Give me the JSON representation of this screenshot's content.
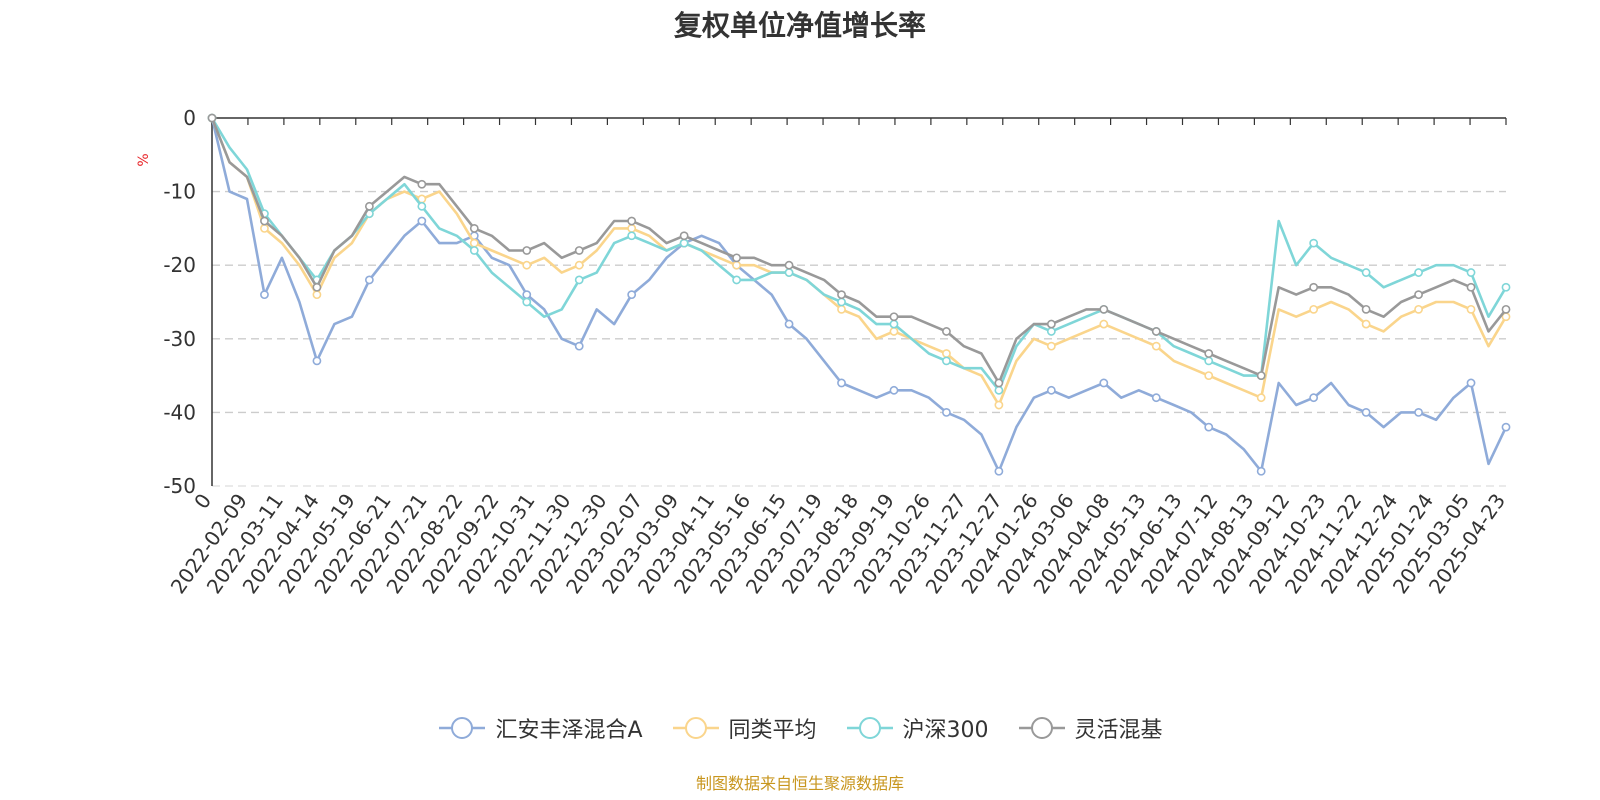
{
  "chart_data": {
    "type": "line",
    "title": "复权单位净值增长率",
    "ylabel": "%",
    "ylim": [
      -50,
      0
    ],
    "yticks": [
      0,
      -10,
      -20,
      -30,
      -40,
      -50
    ],
    "x_tick_labels": [
      "0",
      "2022-02-09",
      "2022-03-11",
      "2022-04-14",
      "2022-05-19",
      "2022-06-21",
      "2022-07-21",
      "2022-08-22",
      "2022-09-22",
      "2022-10-31",
      "2022-11-30",
      "2022-12-30",
      "2023-02-07",
      "2023-03-09",
      "2023-04-11",
      "2023-05-16",
      "2023-06-15",
      "2023-07-19",
      "2023-08-18",
      "2023-09-19",
      "2023-10-26",
      "2023-11-27",
      "2023-12-27",
      "2024-01-26",
      "2024-03-06",
      "2024-04-08",
      "2024-05-13",
      "2024-06-13",
      "2024-07-12",
      "2024-08-13",
      "2024-09-12",
      "2024-10-23",
      "2024-11-22",
      "2024-12-24",
      "2025-01-24",
      "2025-03-05",
      "2025-04-23"
    ],
    "grid": true,
    "legend_position": "bottom",
    "series": [
      {
        "name": "汇安丰泽混合A",
        "color": "#8fabd9",
        "values": [
          0,
          -10,
          -11,
          -24,
          -19,
          -25,
          -33,
          -28,
          -27,
          -22,
          -19,
          -16,
          -14,
          -17,
          -17,
          -16,
          -19,
          -20,
          -24,
          -26,
          -30,
          -31,
          -26,
          -28,
          -24,
          -22,
          -19,
          -17,
          -16,
          -17,
          -20,
          -22,
          -24,
          -28,
          -30,
          -33,
          -36,
          -37,
          -38,
          -37,
          -37,
          -38,
          -40,
          -41,
          -43,
          -48,
          -42,
          -38,
          -37,
          -38,
          -37,
          -36,
          -38,
          -37,
          -38,
          -39,
          -40,
          -42,
          -43,
          -45,
          -48,
          -36,
          -39,
          -38,
          -36,
          -39,
          -40,
          -42,
          -40,
          -40,
          -41,
          -38,
          -36,
          -47,
          -42
        ]
      },
      {
        "name": "同类平均",
        "color": "#fad58c",
        "values": [
          0,
          -6,
          -8,
          -15,
          -17,
          -20,
          -24,
          -19,
          -17,
          -13,
          -11,
          -10,
          -11,
          -10,
          -13,
          -17,
          -18,
          -19,
          -20,
          -19,
          -21,
          -20,
          -18,
          -15,
          -15,
          -16,
          -18,
          -17,
          -18,
          -19,
          -20,
          -20,
          -21,
          -21,
          -22,
          -24,
          -26,
          -27,
          -30,
          -29,
          -30,
          -31,
          -32,
          -34,
          -35,
          -39,
          -33,
          -30,
          -31,
          -30,
          -29,
          -28,
          -29,
          -30,
          -31,
          -33,
          -34,
          -35,
          -36,
          -37,
          -38,
          -26,
          -27,
          -26,
          -25,
          -26,
          -28,
          -29,
          -27,
          -26,
          -25,
          -25,
          -26,
          -31,
          -27
        ]
      },
      {
        "name": "沪深300",
        "color": "#7fd6d8",
        "values": [
          0,
          -4,
          -7,
          -13,
          -16,
          -19,
          -22,
          -18,
          -16,
          -13,
          -11,
          -9,
          -12,
          -15,
          -16,
          -18,
          -21,
          -23,
          -25,
          -27,
          -26,
          -22,
          -21,
          -17,
          -16,
          -17,
          -18,
          -17,
          -18,
          -20,
          -22,
          -22,
          -21,
          -21,
          -22,
          -24,
          -25,
          -26,
          -28,
          -28,
          -30,
          -32,
          -33,
          -34,
          -34,
          -37,
          -31,
          -28,
          -29,
          -28,
          -27,
          -26,
          -27,
          -28,
          -29,
          -31,
          -32,
          -33,
          -34,
          -35,
          -35,
          -14,
          -20,
          -17,
          -19,
          -20,
          -21,
          -23,
          -22,
          -21,
          -20,
          -20,
          -21,
          -27,
          -23
        ]
      },
      {
        "name": "灵活混基",
        "color": "#999999",
        "values": [
          0,
          -6,
          -8,
          -14,
          -16,
          -19,
          -23,
          -18,
          -16,
          -12,
          -10,
          -8,
          -9,
          -9,
          -12,
          -15,
          -16,
          -18,
          -18,
          -17,
          -19,
          -18,
          -17,
          -14,
          -14,
          -15,
          -17,
          -16,
          -17,
          -18,
          -19,
          -19,
          -20,
          -20,
          -21,
          -22,
          -24,
          -25,
          -27,
          -27,
          -27,
          -28,
          -29,
          -31,
          -32,
          -36,
          -30,
          -28,
          -28,
          -27,
          -26,
          -26,
          -27,
          -28,
          -29,
          -30,
          -31,
          -32,
          -33,
          -34,
          -35,
          -23,
          -24,
          -23,
          -23,
          -24,
          -26,
          -27,
          -25,
          -24,
          -23,
          -22,
          -23,
          -29,
          -26
        ]
      }
    ]
  },
  "footer": {
    "source": "制图数据来自恒生聚源数据库"
  }
}
